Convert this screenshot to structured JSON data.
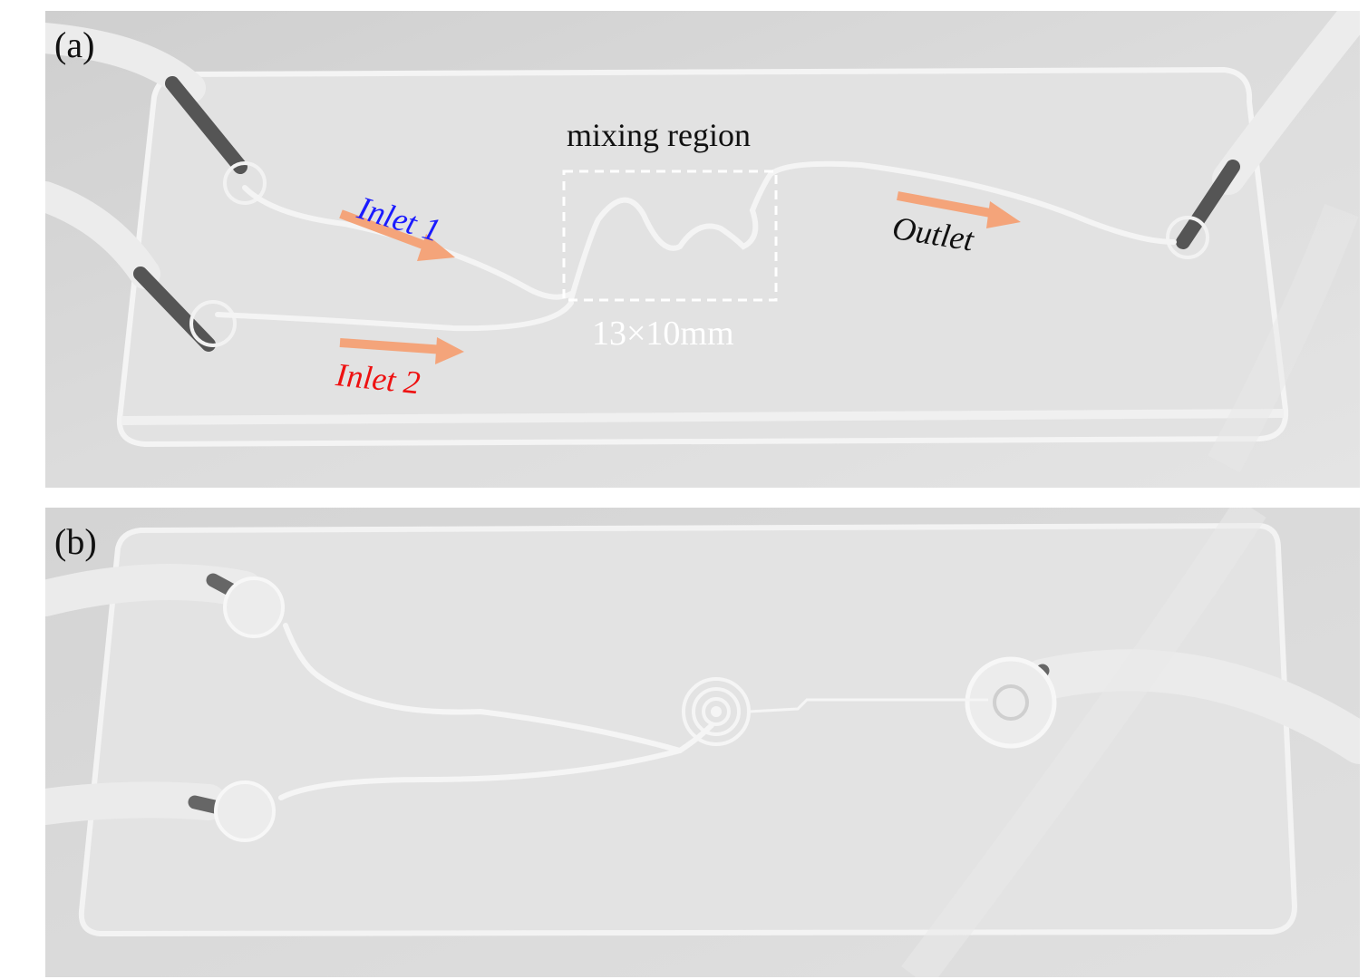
{
  "panel_a": {
    "label": "(a)",
    "inlet1": "Inlet 1",
    "inlet2": "Inlet 2",
    "outlet": "Outlet",
    "region_title": "mixing region",
    "region_size": "13×10mm",
    "arrow_color": "#f4a47a",
    "box_color": "#ffffff"
  },
  "panel_b": {
    "label": "(b)"
  }
}
